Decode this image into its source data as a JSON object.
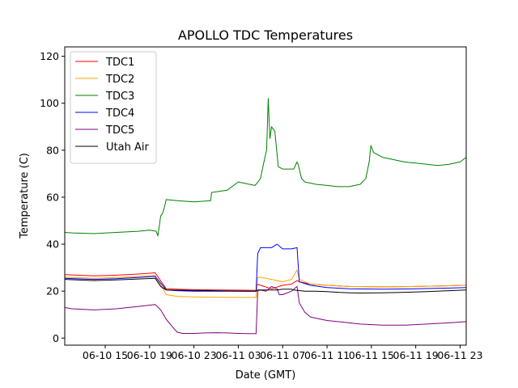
{
  "chart_data": {
    "type": "line",
    "title": "APOLLO TDC Temperatures",
    "xlabel": "Date (GMT)",
    "ylabel": "Temperature (C)",
    "x_unit": "hours since 06-10 00:00 GMT",
    "xlim": [
      11.35,
      47.55
    ],
    "ylim": [
      -3,
      124
    ],
    "x_ticks": [
      {
        "value": 15,
        "label": "06-10 15"
      },
      {
        "value": 19,
        "label": "06-10 19"
      },
      {
        "value": 23,
        "label": "06-10 23"
      },
      {
        "value": 27,
        "label": "06-11 03"
      },
      {
        "value": 31,
        "label": "06-11 07"
      },
      {
        "value": 35,
        "label": "06-11 11"
      },
      {
        "value": 39,
        "label": "06-11 15"
      },
      {
        "value": 43,
        "label": "06-11 19"
      },
      {
        "value": 47,
        "label": "06-11 23"
      }
    ],
    "y_ticks": [
      0,
      20,
      40,
      60,
      80,
      100,
      120
    ],
    "legend_position": "upper-left",
    "grid": false,
    "series": [
      {
        "name": "TDC1",
        "color": "#ff0000",
        "x": [
          11.35,
          14,
          16,
          18,
          19.5,
          20.5,
          21.5,
          23,
          25,
          27.5,
          28.6,
          28.75,
          29,
          30,
          31,
          31.8,
          32.3,
          32.5,
          33.5,
          35,
          37,
          40,
          43,
          46,
          47.55
        ],
        "y": [
          27,
          26.5,
          26.8,
          27.3,
          27.8,
          21,
          20.8,
          20.6,
          20.5,
          20.4,
          20.3,
          23,
          22.5,
          21,
          22.5,
          23,
          24.5,
          24,
          23,
          22.5,
          22,
          21.8,
          22,
          22.3,
          22.5
        ]
      },
      {
        "name": "TDC2",
        "color": "#ffa500",
        "x": [
          11.35,
          14,
          16,
          18,
          19.5,
          20.5,
          21.5,
          23,
          25,
          27.5,
          28.6,
          28.75,
          29.5,
          30.5,
          31,
          31.8,
          32.3,
          32.5,
          33.5,
          35,
          37,
          40,
          43,
          46,
          47.55
        ],
        "y": [
          26,
          25.5,
          25.8,
          26.3,
          26.6,
          18.5,
          17.8,
          17.5,
          17.4,
          17.3,
          17.3,
          26,
          25.5,
          24.5,
          24,
          25,
          29,
          25,
          23,
          22.5,
          22,
          21.8,
          22,
          22.3,
          22.5
        ]
      },
      {
        "name": "TDC3",
        "color": "#008000",
        "x": [
          11.35,
          12,
          14,
          16,
          18,
          19,
          19.6,
          19.75,
          20,
          20.15,
          20.3,
          20.5,
          21.5,
          23,
          24.5,
          24.6,
          26,
          27,
          27.5,
          28,
          28.5,
          28.7,
          29,
          29.4,
          29.55,
          29.7,
          29.85,
          30,
          30.3,
          30.6,
          31,
          32,
          32.3,
          32.4,
          32.7,
          33,
          34,
          35,
          36,
          37,
          38,
          38.5,
          38.8,
          38.95,
          39.2,
          40,
          41,
          42,
          43,
          44,
          45,
          46,
          47,
          47.55
        ],
        "y": [
          45,
          44.8,
          44.5,
          45,
          45.5,
          46,
          45.5,
          43.5,
          52,
          53,
          55,
          59,
          58.5,
          58,
          58.5,
          62,
          63,
          66.5,
          66,
          65.5,
          65,
          66,
          68,
          77,
          80,
          102,
          85,
          90,
          88,
          73,
          72,
          72,
          75,
          74,
          68,
          66.5,
          65.5,
          65,
          64.5,
          64.5,
          65.5,
          68,
          75,
          82,
          79,
          77,
          76,
          75,
          74.5,
          74,
          73.5,
          74,
          75,
          77
        ]
      },
      {
        "name": "TDC4",
        "color": "#0000ff",
        "x": [
          11.35,
          14,
          16,
          18,
          19.5,
          20.5,
          21.5,
          23,
          25,
          27.5,
          28.6,
          28.75,
          29,
          29.5,
          30,
          30.5,
          31,
          31.8,
          32.3,
          32.5,
          33.5,
          35,
          37,
          40,
          43,
          46,
          47.55
        ],
        "y": [
          25.5,
          25,
          25.3,
          25.8,
          26.3,
          20.5,
          20.2,
          20,
          20,
          20,
          20,
          36,
          38.5,
          38.5,
          38.5,
          40,
          38,
          38,
          38.5,
          24,
          22.5,
          21.5,
          21,
          20.8,
          21,
          21.3,
          21.5
        ]
      },
      {
        "name": "TDC5",
        "color": "#800080",
        "x": [
          11.35,
          12,
          14,
          16,
          18,
          19.5,
          20,
          20.5,
          21.2,
          21.5,
          22,
          23,
          24,
          25,
          26,
          27,
          28,
          28.6,
          28.75,
          29,
          29.5,
          30,
          30.5,
          30.7,
          31,
          31.8,
          32.3,
          32.5,
          33,
          33.5,
          34,
          35,
          36,
          37,
          38,
          40,
          42,
          44,
          46,
          47.55
        ],
        "y": [
          13,
          12.5,
          12,
          12.5,
          13.5,
          14.3,
          12,
          8,
          4,
          2.5,
          2,
          2,
          2.2,
          2.3,
          2.2,
          2,
          1.9,
          1.9,
          20,
          20.5,
          20,
          22,
          21,
          18.5,
          18.5,
          20,
          22,
          15,
          11,
          9,
          8.5,
          7.5,
          7,
          6.5,
          6,
          5.5,
          5.5,
          6,
          6.5,
          7
        ]
      },
      {
        "name": "Utah Air",
        "color": "#000000",
        "x": [
          11.35,
          14,
          16,
          18,
          19.5,
          20,
          20.5,
          27.5,
          28.6,
          28.75,
          29.5,
          30.5,
          31,
          31.8,
          32,
          33,
          34,
          35,
          36,
          37,
          38,
          40,
          42,
          44,
          46,
          47.55
        ],
        "y": [
          25,
          24.5,
          24.8,
          25.2,
          25.5,
          22,
          20.5,
          20,
          20,
          20.5,
          20.5,
          20.5,
          20.8,
          20.8,
          20.5,
          20,
          20,
          19.8,
          19.5,
          19.3,
          19.2,
          19.3,
          19.5,
          19.8,
          20.2,
          20.5
        ]
      }
    ]
  }
}
